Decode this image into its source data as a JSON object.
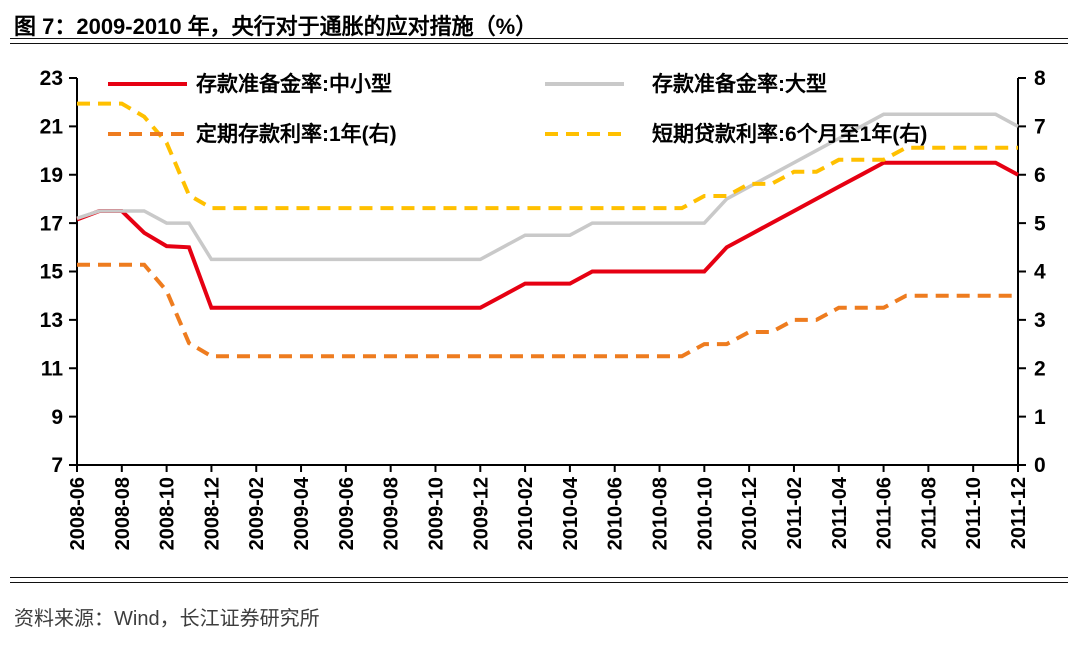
{
  "figure": {
    "title": "图 7：2009-2010 年，央行对于通胀的应对措施（%）",
    "source": "资料来源：Wind，长江证券研究所"
  },
  "colors": {
    "rrr_small": "#e60012",
    "rrr_large": "#c9c9c9",
    "deposit_rate": "#ee7c1f",
    "loan_rate": "#ffc000",
    "axis": "#000000",
    "tick_text": "#000000",
    "source_text": "#3d3d3d"
  },
  "chart_data": {
    "type": "line",
    "title": "图 7：2009-2010 年，央行对于通胀的应对措施（%）",
    "grid": false,
    "legend_position": "top",
    "x": [
      "2008-06",
      "2008-07",
      "2008-08",
      "2008-09",
      "2008-10",
      "2008-11",
      "2008-12",
      "2009-01",
      "2009-02",
      "2009-03",
      "2009-04",
      "2009-05",
      "2009-06",
      "2009-07",
      "2009-08",
      "2009-09",
      "2009-10",
      "2009-11",
      "2009-12",
      "2010-01",
      "2010-02",
      "2010-03",
      "2010-04",
      "2010-05",
      "2010-06",
      "2010-07",
      "2010-08",
      "2010-09",
      "2010-10",
      "2010-11",
      "2010-12",
      "2011-01",
      "2011-02",
      "2011-03",
      "2011-04",
      "2011-05",
      "2011-06",
      "2011-07",
      "2011-08",
      "2011-09",
      "2011-10",
      "2011-11",
      "2011-12"
    ],
    "x_tick_labels": [
      "2008-06",
      "2008-08",
      "2008-10",
      "2008-12",
      "2009-02",
      "2009-04",
      "2009-06",
      "2009-08",
      "2009-10",
      "2009-12",
      "2010-02",
      "2010-04",
      "2010-06",
      "2010-08",
      "2010-10",
      "2010-12",
      "2011-02",
      "2011-04",
      "2011-06",
      "2011-08",
      "2011-10",
      "2011-12"
    ],
    "left_axis": {
      "min": 7,
      "max": 23,
      "ticks": [
        23,
        21,
        19,
        17,
        15,
        13,
        11,
        9,
        7
      ]
    },
    "right_axis": {
      "min": 0,
      "max": 8,
      "ticks": [
        8,
        7,
        6,
        5,
        4,
        3,
        2,
        1,
        0
      ]
    },
    "series": [
      {
        "key": "rrr-small",
        "name": "存款准备金率:中小型",
        "axis": "left",
        "line_style": "solid",
        "color": "#e60012",
        "values": [
          17.15,
          17.5,
          17.5,
          16.6,
          16.05,
          16,
          13.5,
          13.5,
          13.5,
          13.5,
          13.5,
          13.5,
          13.5,
          13.5,
          13.5,
          13.5,
          13.5,
          13.5,
          13.5,
          14,
          14.5,
          14.5,
          14.5,
          15,
          15,
          15,
          15,
          15,
          15,
          16,
          16.5,
          17,
          17.5,
          18,
          18.5,
          19,
          19.5,
          19.5,
          19.5,
          19.5,
          19.5,
          19.5,
          19
        ]
      },
      {
        "key": "rrr-large",
        "name": "存款准备金率:大型",
        "axis": "left",
        "line_style": "solid",
        "color": "#c9c9c9",
        "values": [
          17.2,
          17.5,
          17.5,
          17.5,
          17,
          17,
          15.5,
          15.5,
          15.5,
          15.5,
          15.5,
          15.5,
          15.5,
          15.5,
          15.5,
          15.5,
          15.5,
          15.5,
          15.5,
          16,
          16.5,
          16.5,
          16.5,
          17,
          17,
          17,
          17,
          17,
          17,
          18,
          18.5,
          19,
          19.5,
          20,
          20.5,
          21,
          21.5,
          21.5,
          21.5,
          21.5,
          21.5,
          21.5,
          21
        ]
      },
      {
        "key": "deposit-rate-1y",
        "name": "定期存款利率:1年(右)",
        "axis": "right",
        "line_style": "dashed",
        "color": "#ee7c1f",
        "values": [
          4.14,
          4.14,
          4.14,
          4.14,
          3.6,
          2.52,
          2.25,
          2.25,
          2.25,
          2.25,
          2.25,
          2.25,
          2.25,
          2.25,
          2.25,
          2.25,
          2.25,
          2.25,
          2.25,
          2.25,
          2.25,
          2.25,
          2.25,
          2.25,
          2.25,
          2.25,
          2.25,
          2.25,
          2.5,
          2.5,
          2.75,
          2.75,
          3,
          3,
          3.25,
          3.25,
          3.25,
          3.5,
          3.5,
          3.5,
          3.5,
          3.5,
          3.5
        ]
      },
      {
        "key": "loan-rate-6m-1y",
        "name": "短期贷款利率:6个月至1年(右)",
        "axis": "right",
        "line_style": "dashed",
        "color": "#ffc000",
        "values": [
          7.47,
          7.47,
          7.47,
          7.2,
          6.66,
          5.58,
          5.31,
          5.31,
          5.31,
          5.31,
          5.31,
          5.31,
          5.31,
          5.31,
          5.31,
          5.31,
          5.31,
          5.31,
          5.31,
          5.31,
          5.31,
          5.31,
          5.31,
          5.31,
          5.31,
          5.31,
          5.31,
          5.31,
          5.56,
          5.56,
          5.81,
          5.81,
          6.06,
          6.06,
          6.31,
          6.31,
          6.31,
          6.56,
          6.56,
          6.56,
          6.56,
          6.56,
          6.56
        ]
      }
    ]
  }
}
